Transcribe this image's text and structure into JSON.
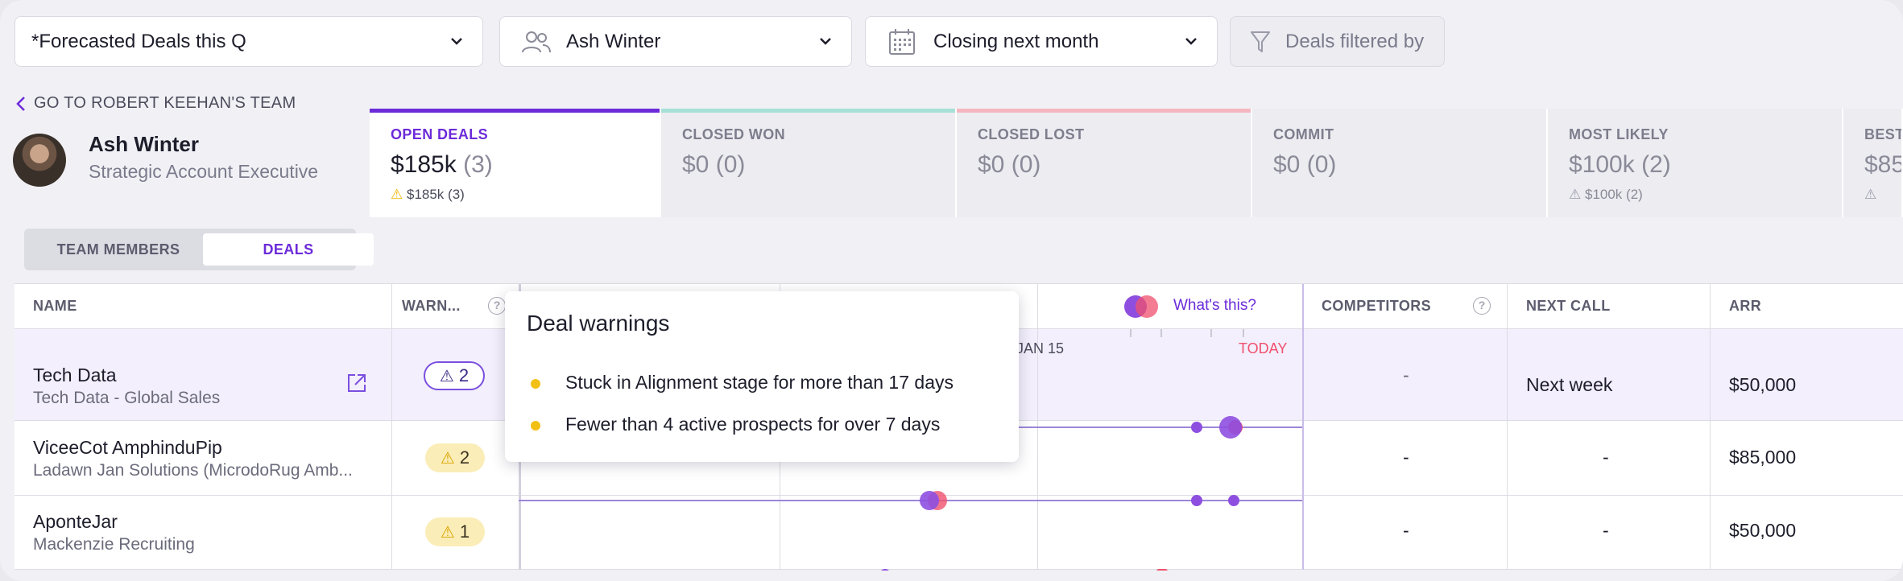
{
  "filters": {
    "view": "*Forecasted Deals this Q",
    "owner": "Ash Winter",
    "closing": "Closing next month",
    "filtered_by": "Deals filtered by"
  },
  "profile": {
    "back_link": "GO TO ROBERT KEEHAN'S TEAM",
    "name": "Ash Winter",
    "role": "Strategic Account Executive"
  },
  "cards": [
    {
      "label": "OPEN DEALS",
      "value": "$185k",
      "count": "(3)",
      "warn": "$185k",
      "warn_count": "(3)",
      "color": "#6c2bd9"
    },
    {
      "label": "CLOSED WON",
      "value": "$0",
      "count": "(0)",
      "color": "#a7e0d6"
    },
    {
      "label": "CLOSED LOST",
      "value": "$0",
      "count": "(0)",
      "color": "#f4b6c0"
    },
    {
      "label": "COMMIT",
      "value": "$0",
      "count": "(0)"
    },
    {
      "label": "MOST LIKELY",
      "value": "$100k",
      "count": "(2)",
      "warn": "$100k",
      "warn_count": "(2)"
    },
    {
      "label": "BEST",
      "value": "$85"
    }
  ],
  "toggle": {
    "team": "TEAM MEMBERS",
    "deals": "DEALS"
  },
  "table": {
    "headers": {
      "name": "NAME",
      "warnings": "WARN...",
      "whats_this": "What's this?",
      "competitors": "COMPETITORS",
      "next_call": "NEXT CALL",
      "arr": "ARR"
    },
    "timeline": {
      "jan15": "JAN 15",
      "today": "TODAY"
    },
    "rows": [
      {
        "name": "Tech Data",
        "sub": "Tech Data - Global Sales",
        "warnings": "2",
        "competitors": "-",
        "next_call": "Next week",
        "arr": "$50,000"
      },
      {
        "name": "ViceeCot AmphinduPip",
        "sub": "Ladawn Jan Solutions (MicrodoRug Amb...",
        "warnings": "2",
        "competitors": "-",
        "next_call": "-",
        "arr": "$85,000"
      },
      {
        "name": "AponteJar",
        "sub": "Mackenzie Recruiting",
        "warnings": "1",
        "competitors": "-",
        "next_call": "-",
        "arr": "$50,000"
      }
    ]
  },
  "tooltip": {
    "title": "Deal warnings",
    "items": [
      "Stuck in Alignment stage for more than 17 days",
      "Fewer than 4 active prospects for over 7 days"
    ]
  }
}
